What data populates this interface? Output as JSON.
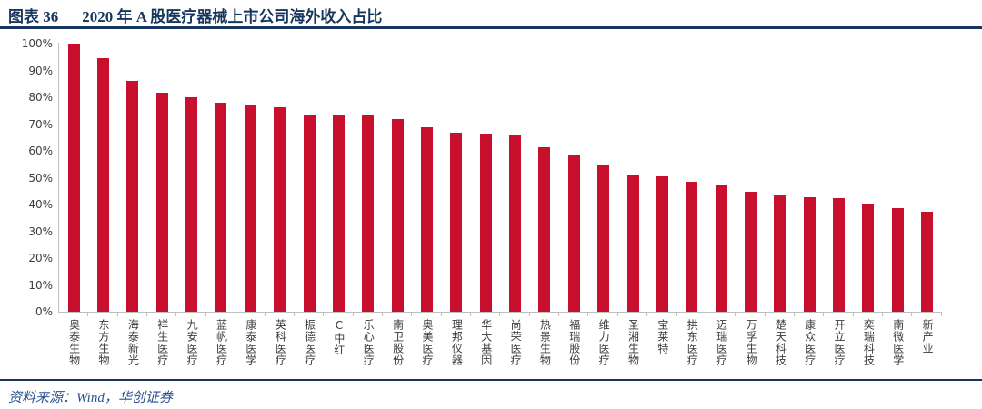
{
  "header": {
    "figure_label": "图表 36",
    "title": "2020 年 A 股医疗器械上市公司海外收入占比"
  },
  "footer": {
    "source": "资料来源：Wind，华创证券"
  },
  "colors": {
    "bar": "#C8102E",
    "navy_accent": "#17365D",
    "source_text": "#2C5293",
    "axis_line": "#C0C0C0",
    "tick_label": "#404040"
  },
  "chart_data": {
    "type": "bar",
    "title": "2020 年 A 股医疗器械上市公司海外收入占比",
    "categories": [
      "奥泰生物",
      "东方生物",
      "海泰新光",
      "祥生医疗",
      "九安医疗",
      "蓝帆医疗",
      "康泰医学",
      "英科医疗",
      "振德医疗",
      "C中红",
      "乐心医疗",
      "南卫股份",
      "奥美医疗",
      "理邦仪器",
      "华大基因",
      "尚荣医疗",
      "热景生物",
      "福瑞股份",
      "维力医疗",
      "圣湘生物",
      "宝莱特",
      "拱东医疗",
      "迈瑞医疗",
      "万孚生物",
      "楚天科技",
      "康众医疗",
      "开立医疗",
      "奕瑞科技",
      "南微医学",
      "新产业"
    ],
    "values": [
      100,
      94.6,
      86.0,
      81.7,
      80.1,
      78.1,
      77.3,
      76.4,
      73.7,
      73.4,
      73.2,
      72.0,
      68.9,
      66.7,
      66.5,
      66.2,
      61.4,
      58.6,
      54.5,
      51.0,
      50.5,
      48.5,
      47.2,
      44.8,
      43.5,
      42.6,
      42.5,
      40.5,
      38.6,
      37.4
    ],
    "xlabel": "",
    "ylabel": "",
    "ylim": [
      0,
      100
    ],
    "y_ticks": [
      "0%",
      "10%",
      "20%",
      "30%",
      "40%",
      "50%",
      "60%",
      "70%",
      "80%",
      "90%",
      "100%"
    ],
    "grid": false,
    "legend": false,
    "bar_color": "#C8102E"
  }
}
